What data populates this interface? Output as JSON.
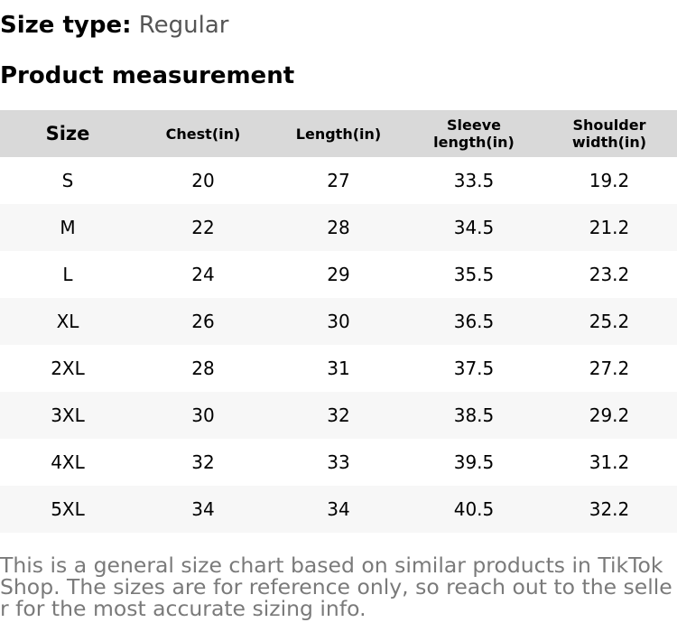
{
  "size_type": {
    "label": "Size type:",
    "value": "Regular"
  },
  "section_title": "Product measurement",
  "table": {
    "headers": [
      "Size",
      "Chest(in)",
      "Length(in)",
      "Sleeve length(in)",
      "Shoulder width(in)"
    ],
    "rows": [
      [
        "S",
        "20",
        "27",
        "33.5",
        "19.2"
      ],
      [
        "M",
        "22",
        "28",
        "34.5",
        "21.2"
      ],
      [
        "L",
        "24",
        "29",
        "35.5",
        "23.2"
      ],
      [
        "XL",
        "26",
        "30",
        "36.5",
        "25.2"
      ],
      [
        "2XL",
        "28",
        "31",
        "37.5",
        "27.2"
      ],
      [
        "3XL",
        "30",
        "32",
        "38.5",
        "29.2"
      ],
      [
        "4XL",
        "32",
        "33",
        "39.5",
        "31.2"
      ],
      [
        "5XL",
        "34",
        "34",
        "40.5",
        "32.2"
      ]
    ]
  },
  "note": "This is a general size chart based on similar products in TikTok Shop. The sizes are for reference only, so reach out to the seller for the most accurate sizing info.",
  "colors": {
    "header_bg": "#d9d9d9",
    "stripe_bg": "#f7f7f7",
    "note_text": "#7a7a7a",
    "value_text": "#555555"
  }
}
